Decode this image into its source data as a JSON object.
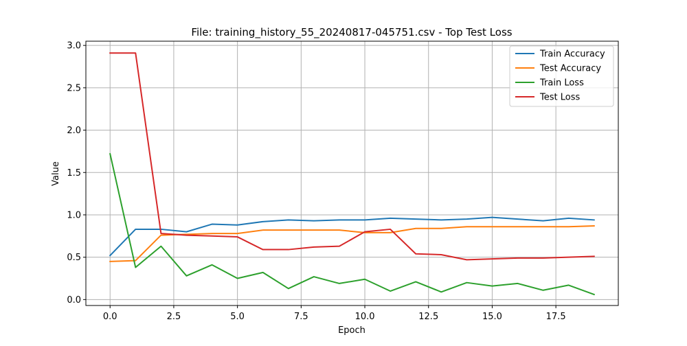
{
  "chart_data": {
    "type": "line",
    "title": "File: training_history_55_20240817-045751.csv - Top Test Loss",
    "xlabel": "Epoch",
    "ylabel": "Value",
    "xlim": [
      -0.95,
      19.95
    ],
    "ylim": [
      -0.07,
      3.05
    ],
    "xticks": [
      0,
      2.5,
      5,
      7.5,
      10,
      12.5,
      15,
      17.5
    ],
    "xtick_labels": [
      "0.0",
      "2.5",
      "5.0",
      "7.5",
      "10.0",
      "12.5",
      "15.0",
      "17.5"
    ],
    "yticks": [
      0,
      0.5,
      1,
      1.5,
      2,
      2.5,
      3
    ],
    "ytick_labels": [
      "0.0",
      "0.5",
      "1.0",
      "1.5",
      "2.0",
      "2.5",
      "3.0"
    ],
    "grid": true,
    "legend_position": "top-right",
    "x": [
      0,
      1,
      2,
      3,
      4,
      5,
      6,
      7,
      8,
      9,
      10,
      11,
      12,
      13,
      14,
      15,
      16,
      17,
      18,
      19
    ],
    "series": [
      {
        "name": "Train Accuracy",
        "color": "#1f77b4",
        "values": [
          0.52,
          0.83,
          0.83,
          0.8,
          0.89,
          0.88,
          0.92,
          0.94,
          0.93,
          0.94,
          0.94,
          0.96,
          0.95,
          0.94,
          0.95,
          0.97,
          0.95,
          0.93,
          0.96,
          0.94
        ]
      },
      {
        "name": "Test Accuracy",
        "color": "#ff7f0e",
        "values": [
          0.45,
          0.46,
          0.76,
          0.77,
          0.78,
          0.78,
          0.82,
          0.82,
          0.82,
          0.82,
          0.79,
          0.79,
          0.84,
          0.84,
          0.86,
          0.86,
          0.86,
          0.86,
          0.86,
          0.87
        ]
      },
      {
        "name": "Train Loss",
        "color": "#2ca02c",
        "values": [
          1.72,
          0.38,
          0.63,
          0.28,
          0.41,
          0.25,
          0.32,
          0.13,
          0.27,
          0.19,
          0.24,
          0.1,
          0.21,
          0.09,
          0.2,
          0.16,
          0.19,
          0.11,
          0.17,
          0.06
        ]
      },
      {
        "name": "Test Loss",
        "color": "#d62728",
        "values": [
          2.91,
          2.91,
          0.78,
          0.76,
          0.75,
          0.74,
          0.59,
          0.59,
          0.62,
          0.63,
          0.8,
          0.83,
          0.54,
          0.53,
          0.47,
          0.48,
          0.49,
          0.49,
          0.5,
          0.51
        ]
      }
    ]
  }
}
